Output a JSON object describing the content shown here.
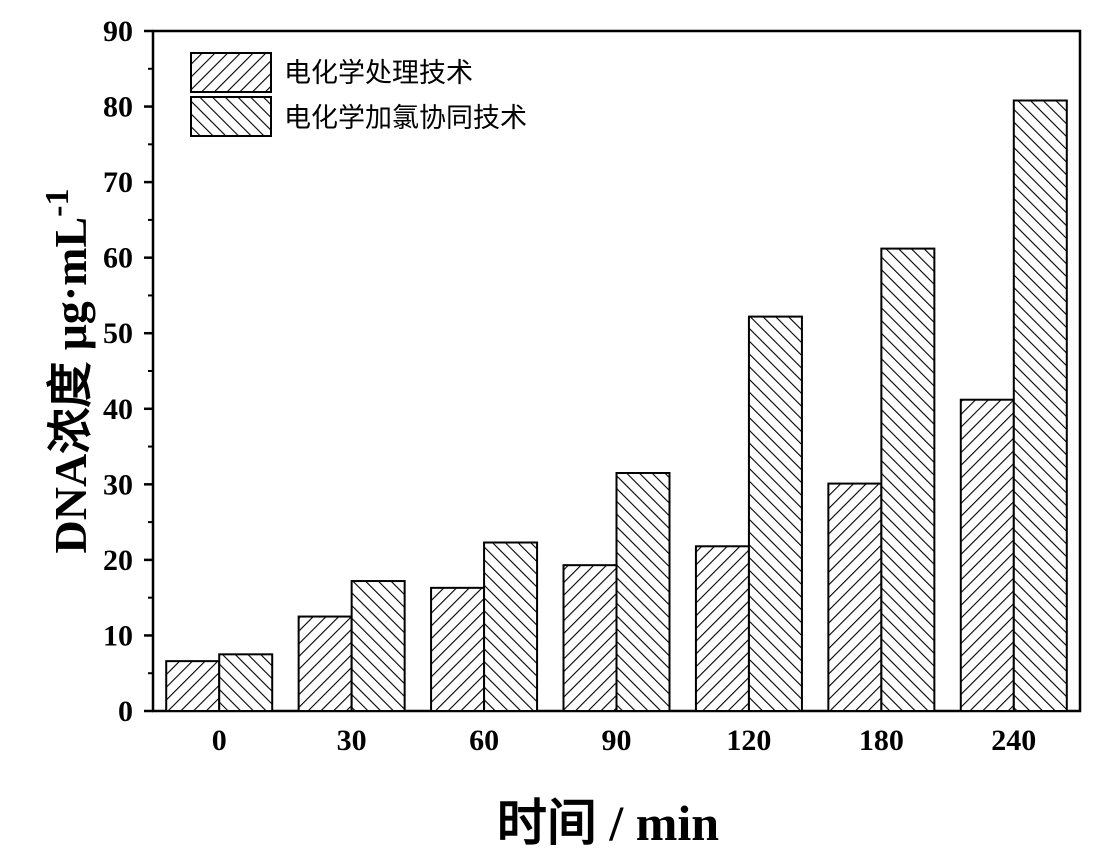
{
  "chart_data": {
    "type": "bar",
    "categories": [
      "0",
      "30",
      "60",
      "90",
      "120",
      "180",
      "240"
    ],
    "series": [
      {
        "name": "电化学处理技术",
        "values": [
          6.6,
          12.5,
          16.3,
          19.3,
          21.8,
          30.1,
          41.2
        ],
        "pattern": "hatch-forward"
      },
      {
        "name": "电化学加氯协同技术",
        "values": [
          7.5,
          17.2,
          22.3,
          31.5,
          52.2,
          61.2,
          80.8
        ],
        "pattern": "hatch-backward"
      }
    ],
    "xlabel": "时间 / min",
    "ylabel": "DNA浓度 μg·mL",
    "ylabel_superscript": "-1",
    "ylim": [
      0,
      90
    ],
    "yticks": [
      0,
      10,
      20,
      30,
      40,
      50,
      60,
      70,
      80,
      90
    ],
    "grid": false,
    "legend_position": "top-left",
    "bar_color": "#000000",
    "background_color": "#ffffff"
  }
}
